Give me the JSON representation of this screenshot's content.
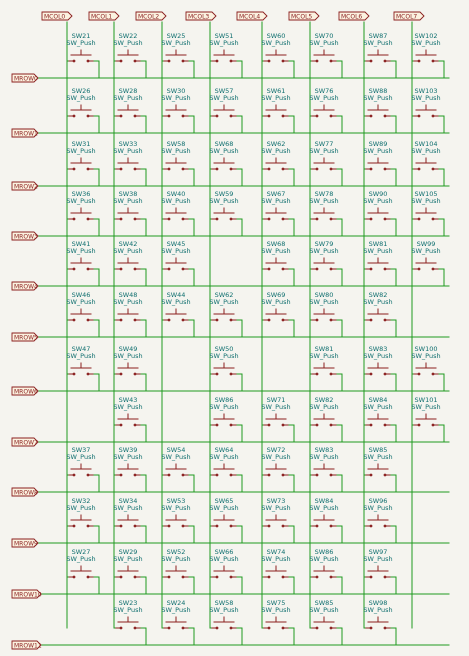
{
  "colors": {
    "wire": "#1f9a1f",
    "symbol": "#8a1e1e",
    "ref_text": "#0f6f6f",
    "label_text": "#8a1e1e",
    "label_fill": "#fbf2e0",
    "paper": "#f5f4ef"
  },
  "footprint_value": "SW_Push",
  "columns": [
    "MCOL0",
    "MCOL1",
    "MCOL2",
    "MCOL3",
    "MCOL4",
    "MCOL5",
    "MCOL6",
    "MCOL7"
  ],
  "rows": [
    "MROW0",
    "MROW1",
    "MROW2",
    "MROW3",
    "MROW4",
    "MROW5",
    "MROW6",
    "MROW7",
    "MROW8",
    "MROW9",
    "MROW10",
    "MROW11"
  ],
  "grid": [
    [
      "SW21",
      "SW22",
      "SW25",
      "SW51",
      "SW60",
      "SW70",
      "SW87",
      "SW102"
    ],
    [
      "SW26",
      "SW28",
      "SW30",
      "SW57",
      "SW61",
      "SW76",
      "SW88",
      "SW103"
    ],
    [
      "SW31",
      "SW33",
      "SW58",
      "SW68",
      "SW62",
      "SW77",
      "SW89",
      "SW104"
    ],
    [
      "SW36",
      "SW38",
      "SW40",
      "SW59",
      "SW67",
      "SW78",
      "SW90",
      "SW105"
    ],
    [
      "SW41",
      "SW42",
      "SW45",
      "",
      "SW68",
      "SW79",
      "SW81",
      "SW99"
    ],
    [
      "SW46",
      "SW48",
      "SW44",
      "SW62",
      "SW69",
      "SW80",
      "SW82",
      ""
    ],
    [
      "SW47",
      "SW49",
      "",
      "SW50",
      "",
      "SW81",
      "SW83",
      "SW100"
    ],
    [
      "",
      "SW43",
      "",
      "SW86",
      "SW71",
      "SW82",
      "SW84",
      "SW101"
    ],
    [
      "SW37",
      "SW39",
      "SW54",
      "SW64",
      "SW72",
      "SW83",
      "SW85",
      ""
    ],
    [
      "SW32",
      "SW34",
      "SW53",
      "SW65",
      "SW73",
      "SW84",
      "SW96",
      ""
    ],
    [
      "SW27",
      "SW29",
      "SW52",
      "SW66",
      "SW74",
      "SW86",
      "SW97",
      ""
    ],
    [
      "",
      "SW23",
      "SW24",
      "SW58",
      "SW75",
      "SW85",
      "SW98",
      ""
    ]
  ]
}
